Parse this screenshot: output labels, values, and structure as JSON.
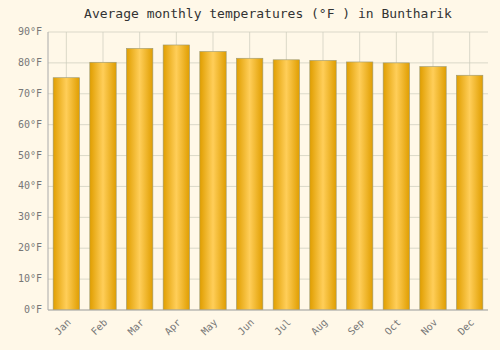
{
  "chart_data": {
    "type": "bar",
    "title": "Average monthly temperatures (°F ) in Buntharik",
    "categories": [
      "Jan",
      "Feb",
      "Mar",
      "Apr",
      "May",
      "Jun",
      "Jul",
      "Aug",
      "Sep",
      "Oct",
      "Nov",
      "Dec"
    ],
    "values": [
      75.2,
      80.2,
      84.7,
      85.8,
      83.7,
      81.5,
      81.0,
      80.8,
      80.3,
      80.0,
      78.8,
      76.0
    ],
    "color": "#FFB300",
    "ylim": [
      0,
      90
    ],
    "yticks": [
      {
        "value": 0,
        "label": "0°F"
      },
      {
        "value": 10,
        "label": "10°F"
      },
      {
        "value": 20,
        "label": "20°F"
      },
      {
        "value": 30,
        "label": "30°F"
      },
      {
        "value": 40,
        "label": "40°F"
      },
      {
        "value": 50,
        "label": "50°F"
      },
      {
        "value": 60,
        "label": "60°F"
      },
      {
        "value": 70,
        "label": "70°F"
      },
      {
        "value": 80,
        "label": "80°F"
      },
      {
        "value": 90,
        "label": "90°F"
      }
    ],
    "grid": true
  }
}
